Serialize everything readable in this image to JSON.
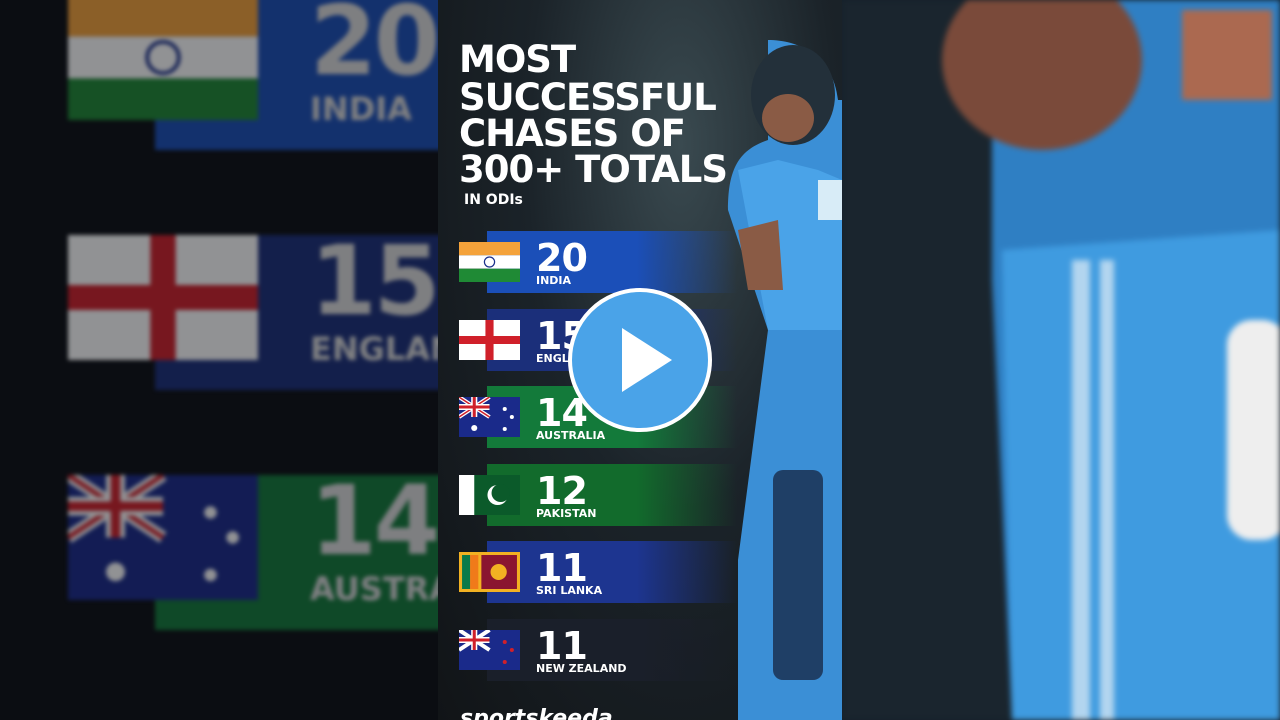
{
  "infographic": {
    "title_lines": [
      "MOST",
      "SUCCESSFUL",
      "CHASES OF",
      "300+ TOTALS"
    ],
    "subtitle": "IN ODIs",
    "rows": [
      {
        "value": 20,
        "country": "INDIA"
      },
      {
        "value": 15,
        "country": "ENGLAND"
      },
      {
        "value": 14,
        "country": "AUSTRALIA"
      },
      {
        "value": 12,
        "country": "PAKISTAN"
      },
      {
        "value": 11,
        "country": "SRI LANKA"
      },
      {
        "value": 11,
        "country": "NEW ZEALAND"
      }
    ],
    "brand": "sportskeeda"
  }
}
